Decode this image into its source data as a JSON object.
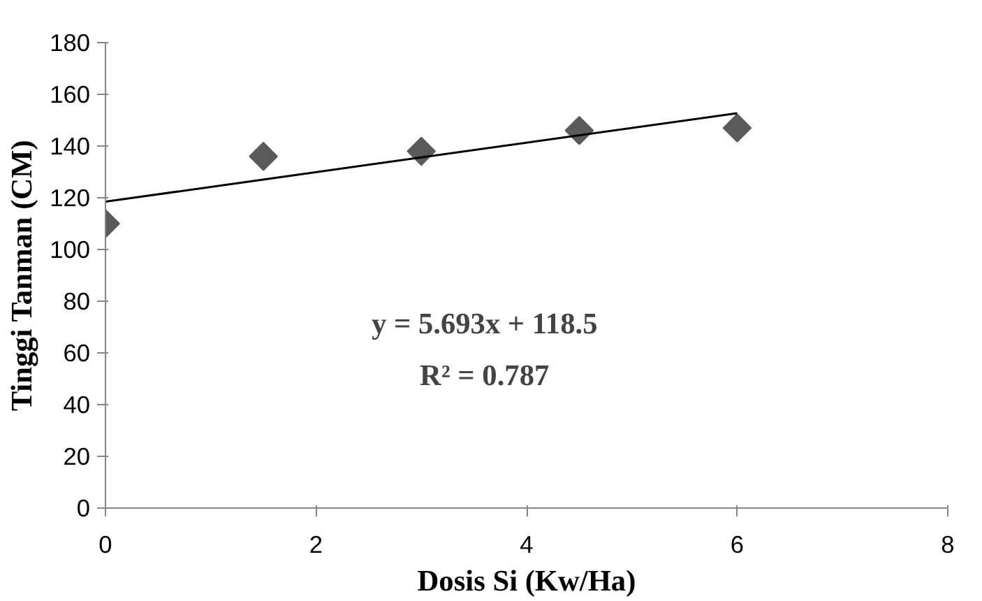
{
  "chart_data": {
    "type": "scatter",
    "xlabel": "Dosis Si (Kw/Ha)",
    "ylabel": "Tinggi Tanman (CM)",
    "x": [
      0,
      1.5,
      3,
      4.5,
      6
    ],
    "series": [
      {
        "color": "#5a5a5a",
        "marker": "diamond",
        "values": [
          110,
          136,
          138,
          146,
          147
        ]
      },
      {
        "type": "line",
        "color": "#000000",
        "x": [
          0,
          6
        ],
        "values": [
          118.5,
          152.7
        ]
      }
    ],
    "annotations": [
      "y = 5.693x + 118.5",
      "R² = 0.787"
    ],
    "xlim": [
      0,
      8
    ],
    "xticks": [
      0,
      2,
      4,
      6,
      8
    ],
    "ylim": [
      0,
      180
    ],
    "yticks": [
      0,
      20,
      40,
      60,
      80,
      100,
      120,
      140,
      160,
      180
    ],
    "grid": false
  }
}
